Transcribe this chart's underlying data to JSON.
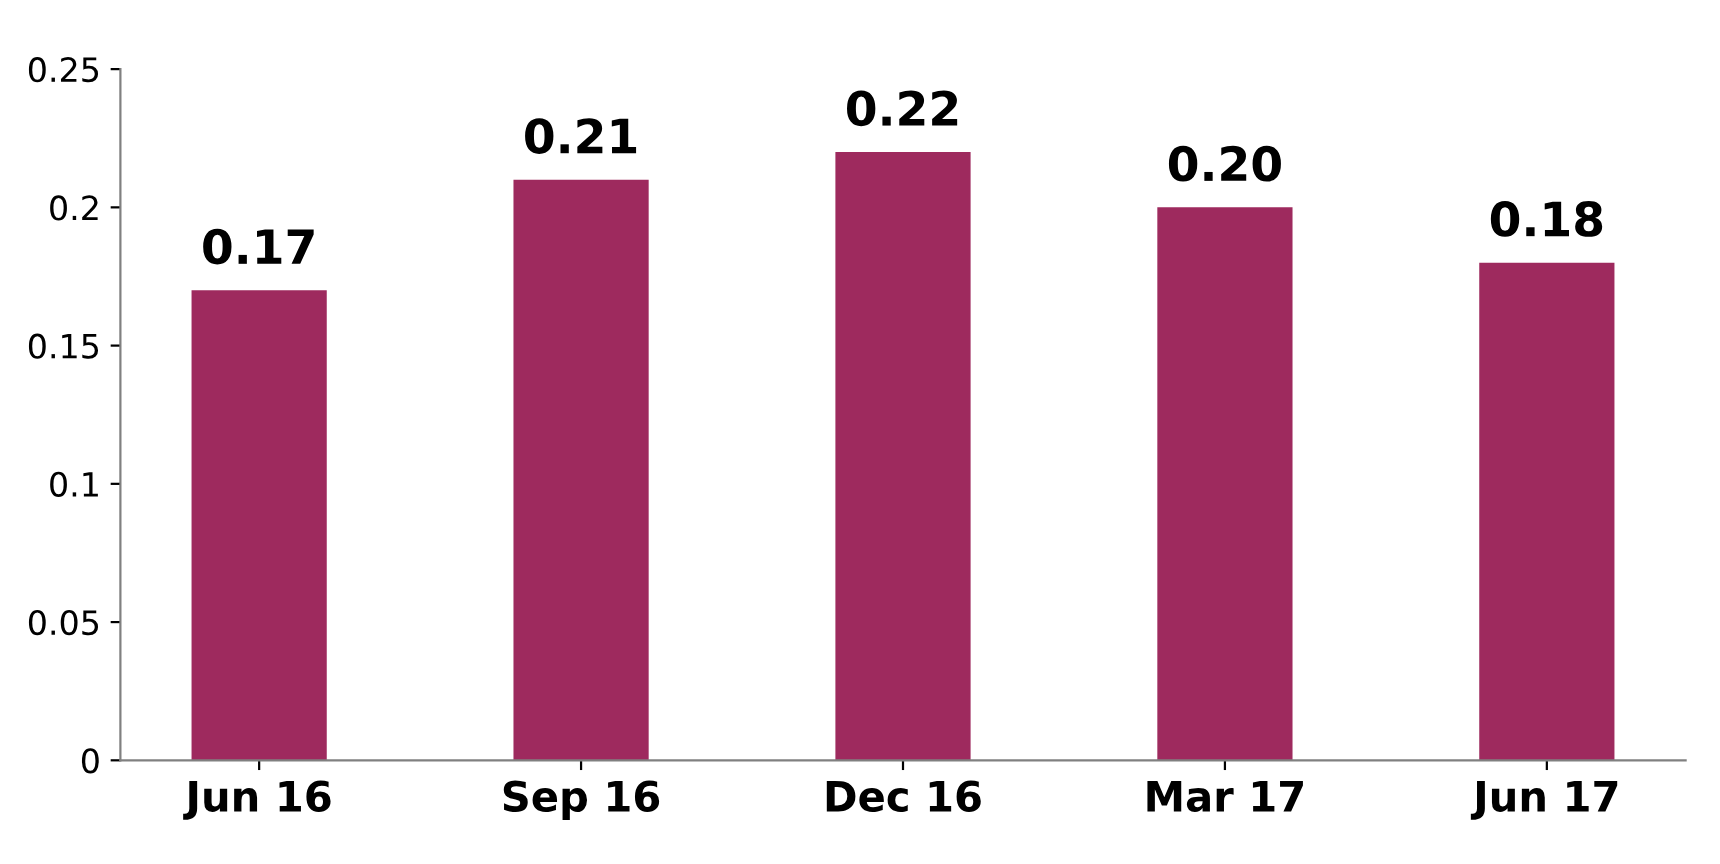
{
  "chart_data": {
    "type": "bar",
    "categories": [
      "Jun 16",
      "Sep 16",
      "Dec 16",
      "Mar 17",
      "Jun 17"
    ],
    "values": [
      0.17,
      0.21,
      0.22,
      0.2,
      0.18
    ],
    "value_labels": [
      "0.17",
      "0.21",
      "0.22",
      "0.20",
      "0.18"
    ],
    "color": "#9e2a5e",
    "ylim": [
      0,
      0.25
    ],
    "yticks": [
      0,
      0.05,
      0.1,
      0.15,
      0.2,
      0.25
    ],
    "grid": false
  }
}
